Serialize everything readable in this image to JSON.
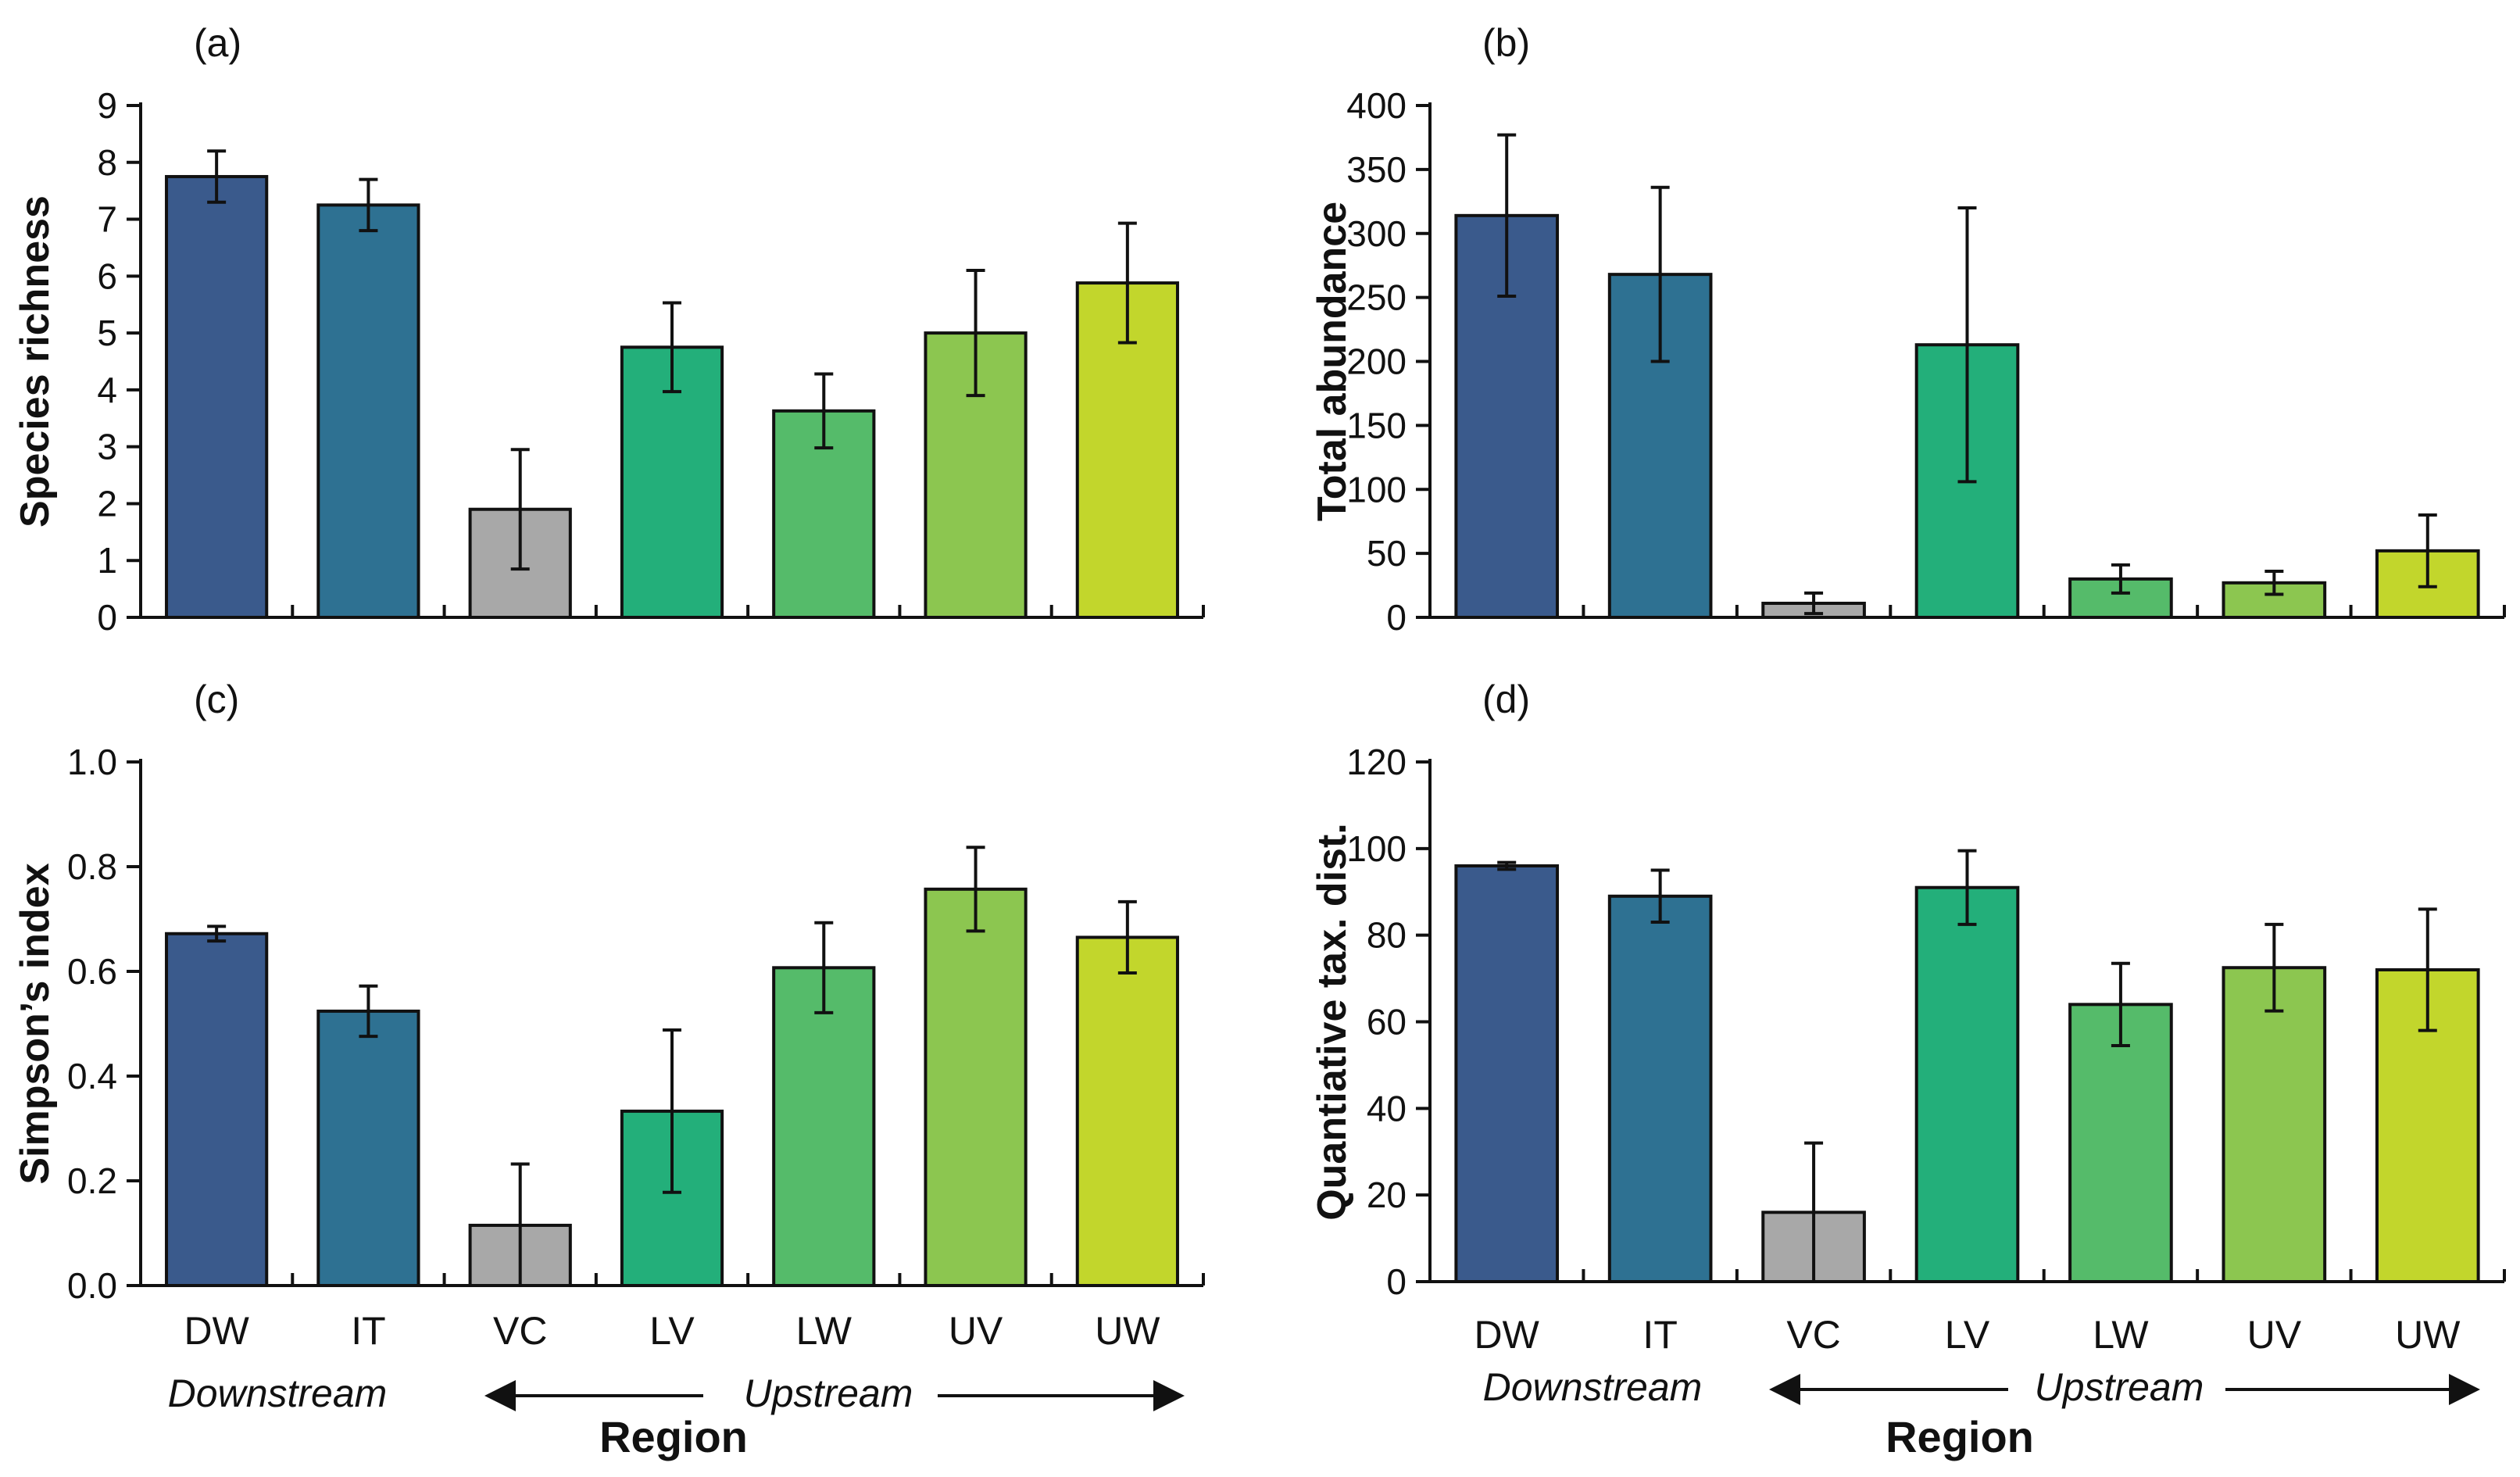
{
  "figure": {
    "region_label": "Region",
    "downstream_label": "Downstream",
    "upstream_label": "Upstream"
  },
  "chart_data": [
    {
      "panel": "(a)",
      "type": "bar",
      "categories": [
        "DW",
        "IT",
        "VC",
        "LV",
        "LW",
        "UV",
        "UW"
      ],
      "values": [
        7.75,
        7.25,
        1.9,
        4.75,
        3.63,
        5.0,
        5.88
      ],
      "errors": [
        0.45,
        0.45,
        1.05,
        0.78,
        0.65,
        1.1,
        1.05
      ],
      "colors": [
        "#3a5a8c",
        "#2e7192",
        "#a8a8a8",
        "#23af7a",
        "#55bb6a",
        "#8cc650",
        "#c2d62c"
      ],
      "ylabel": "Species richness",
      "xlabel": "",
      "ylim": [
        0,
        9
      ],
      "yticks": [
        0,
        1,
        2,
        3,
        4,
        5,
        6,
        7,
        8,
        9
      ],
      "ytick_labels": [
        "0",
        "1",
        "2",
        "3",
        "4",
        "5",
        "6",
        "7",
        "8",
        "9"
      ]
    },
    {
      "panel": "(b)",
      "type": "bar",
      "categories": [
        "DW",
        "IT",
        "VC",
        "LV",
        "LW",
        "UV",
        "UW"
      ],
      "values": [
        314,
        268,
        11,
        213,
        30,
        27,
        52
      ],
      "errors": [
        63,
        68,
        8,
        107,
        11,
        9,
        28
      ],
      "colors": [
        "#3a5a8c",
        "#2e7192",
        "#a8a8a8",
        "#23af7a",
        "#55bb6a",
        "#8cc650",
        "#c2d62c"
      ],
      "ylabel": "Total abundance",
      "xlabel": "",
      "ylim": [
        0,
        400
      ],
      "yticks": [
        0,
        50,
        100,
        150,
        200,
        250,
        300,
        350,
        400
      ],
      "ytick_labels": [
        "0",
        "50",
        "100",
        "150",
        "200",
        "250",
        "300",
        "350",
        "400"
      ]
    },
    {
      "panel": "(c)",
      "type": "bar",
      "categories": [
        "DW",
        "IT",
        "VC",
        "LV",
        "LW",
        "UV",
        "UW"
      ],
      "values": [
        0.672,
        0.524,
        0.115,
        0.333,
        0.607,
        0.757,
        0.665
      ],
      "errors": [
        0.014,
        0.048,
        0.117,
        0.155,
        0.086,
        0.08,
        0.068
      ],
      "colors": [
        "#3a5a8c",
        "#2e7192",
        "#a8a8a8",
        "#23af7a",
        "#55bb6a",
        "#8cc650",
        "#c2d62c"
      ],
      "ylabel": "Simpson’s index",
      "xlabel": "Region",
      "ylim": [
        0,
        1.0
      ],
      "yticks": [
        0,
        0.2,
        0.4,
        0.6,
        0.8,
        1.0
      ],
      "ytick_labels": [
        "0.0",
        "0.2",
        "0.4",
        "0.6",
        "0.8",
        "1.0"
      ]
    },
    {
      "panel": "(d)",
      "type": "bar",
      "categories": [
        "DW",
        "IT",
        "VC",
        "LV",
        "LW",
        "UV",
        "UW"
      ],
      "values": [
        96,
        89,
        16,
        91,
        64,
        72.5,
        72
      ],
      "errors": [
        0.8,
        6,
        16,
        8.5,
        9.5,
        10,
        14
      ],
      "colors": [
        "#3a5a8c",
        "#2e7192",
        "#a8a8a8",
        "#23af7a",
        "#55bb6a",
        "#8cc650",
        "#c2d62c"
      ],
      "ylabel": "Quantiative tax. dist.",
      "xlabel": "Region",
      "ylim": [
        0,
        120
      ],
      "yticks": [
        0,
        20,
        40,
        60,
        80,
        100,
        120
      ],
      "ytick_labels": [
        "0",
        "20",
        "40",
        "60",
        "80",
        "100",
        "120"
      ]
    }
  ]
}
